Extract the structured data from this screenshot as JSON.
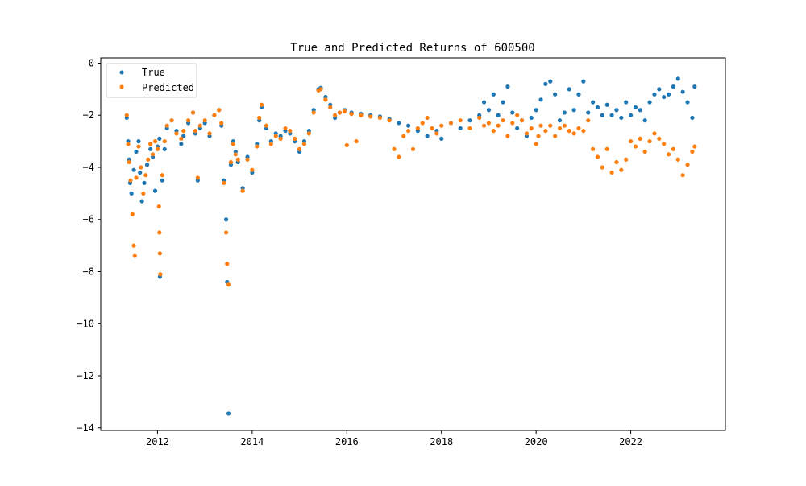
{
  "chart_data": {
    "type": "scatter",
    "title": "True and Predicted Returns of 600500",
    "xlabel": "",
    "ylabel": "",
    "xlim": [
      2010.8,
      2024.0
    ],
    "ylim": [
      -14.1,
      0.2
    ],
    "x_ticks": [
      2012,
      2014,
      2016,
      2018,
      2020,
      2022
    ],
    "x_tick_labels": [
      "2012",
      "2014",
      "2016",
      "2018",
      "2020",
      "2022"
    ],
    "y_ticks": [
      0,
      -2,
      -4,
      -6,
      -8,
      -10,
      -12,
      -14
    ],
    "y_tick_labels": [
      "0",
      "−2",
      "−4",
      "−6",
      "−8",
      "−10",
      "−12",
      "−14"
    ],
    "grid": false,
    "legend_position": "upper left",
    "series": [
      {
        "name": "True",
        "color": "#1f77b4",
        "points": [
          [
            2011.35,
            -2.1
          ],
          [
            2011.38,
            -3.0
          ],
          [
            2011.4,
            -3.7
          ],
          [
            2011.42,
            -4.6
          ],
          [
            2011.45,
            -5.0
          ],
          [
            2011.5,
            -4.1
          ],
          [
            2011.55,
            -3.4
          ],
          [
            2011.6,
            -3.0
          ],
          [
            2011.63,
            -4.2
          ],
          [
            2011.67,
            -5.3
          ],
          [
            2011.72,
            -4.6
          ],
          [
            2011.78,
            -3.9
          ],
          [
            2011.85,
            -3.3
          ],
          [
            2011.9,
            -3.6
          ],
          [
            2011.95,
            -4.9
          ],
          [
            2012.0,
            -3.2
          ],
          [
            2012.04,
            -2.9
          ],
          [
            2012.05,
            -8.2
          ],
          [
            2012.1,
            -4.5
          ],
          [
            2012.15,
            -3.3
          ],
          [
            2012.2,
            -2.5
          ],
          [
            2012.3,
            -2.2
          ],
          [
            2012.4,
            -2.6
          ],
          [
            2012.5,
            -3.1
          ],
          [
            2012.55,
            -2.8
          ],
          [
            2012.65,
            -2.3
          ],
          [
            2012.75,
            -1.9
          ],
          [
            2012.8,
            -2.7
          ],
          [
            2012.85,
            -4.5
          ],
          [
            2012.9,
            -2.5
          ],
          [
            2013.0,
            -2.3
          ],
          [
            2013.1,
            -2.8
          ],
          [
            2013.2,
            -2.0
          ],
          [
            2013.3,
            -1.8
          ],
          [
            2013.35,
            -2.4
          ],
          [
            2013.4,
            -4.5
          ],
          [
            2013.45,
            -6.0
          ],
          [
            2013.47,
            -8.4
          ],
          [
            2013.5,
            -13.45
          ],
          [
            2013.55,
            -3.9
          ],
          [
            2013.6,
            -3.0
          ],
          [
            2013.65,
            -3.4
          ],
          [
            2013.7,
            -3.8
          ],
          [
            2013.8,
            -4.8
          ],
          [
            2013.9,
            -3.6
          ],
          [
            2014.0,
            -4.2
          ],
          [
            2014.1,
            -3.1
          ],
          [
            2014.15,
            -2.2
          ],
          [
            2014.2,
            -1.7
          ],
          [
            2014.3,
            -2.5
          ],
          [
            2014.4,
            -3.0
          ],
          [
            2014.5,
            -2.7
          ],
          [
            2014.6,
            -2.8
          ],
          [
            2014.7,
            -2.6
          ],
          [
            2014.8,
            -2.7
          ],
          [
            2014.9,
            -3.0
          ],
          [
            2015.0,
            -3.4
          ],
          [
            2015.1,
            -3.0
          ],
          [
            2015.2,
            -2.6
          ],
          [
            2015.3,
            -1.8
          ],
          [
            2015.4,
            -1.0
          ],
          [
            2015.45,
            -0.95
          ],
          [
            2015.55,
            -1.3
          ],
          [
            2015.65,
            -1.6
          ],
          [
            2015.75,
            -2.1
          ],
          [
            2015.85,
            -1.9
          ],
          [
            2015.95,
            -1.8
          ],
          [
            2016.1,
            -1.9
          ],
          [
            2016.3,
            -1.95
          ],
          [
            2016.5,
            -2.0
          ],
          [
            2016.7,
            -2.05
          ],
          [
            2016.9,
            -2.15
          ],
          [
            2017.1,
            -2.3
          ],
          [
            2017.3,
            -2.4
          ],
          [
            2017.5,
            -2.6
          ],
          [
            2017.7,
            -2.8
          ],
          [
            2017.9,
            -2.6
          ],
          [
            2018.0,
            -2.9
          ],
          [
            2018.2,
            -2.3
          ],
          [
            2018.4,
            -2.5
          ],
          [
            2018.6,
            -2.2
          ],
          [
            2018.8,
            -2.0
          ],
          [
            2018.9,
            -1.5
          ],
          [
            2019.0,
            -1.8
          ],
          [
            2019.1,
            -1.2
          ],
          [
            2019.2,
            -2.0
          ],
          [
            2019.3,
            -1.5
          ],
          [
            2019.4,
            -0.9
          ],
          [
            2019.5,
            -1.9
          ],
          [
            2019.6,
            -2.5
          ],
          [
            2019.7,
            -2.2
          ],
          [
            2019.8,
            -2.8
          ],
          [
            2019.9,
            -2.1
          ],
          [
            2020.0,
            -1.8
          ],
          [
            2020.1,
            -1.4
          ],
          [
            2020.2,
            -0.8
          ],
          [
            2020.3,
            -0.7
          ],
          [
            2020.4,
            -1.2
          ],
          [
            2020.5,
            -2.2
          ],
          [
            2020.6,
            -1.9
          ],
          [
            2020.7,
            -1.0
          ],
          [
            2020.8,
            -1.8
          ],
          [
            2020.9,
            -1.2
          ],
          [
            2021.0,
            -0.7
          ],
          [
            2021.1,
            -1.9
          ],
          [
            2021.2,
            -1.5
          ],
          [
            2021.3,
            -1.7
          ],
          [
            2021.4,
            -2.0
          ],
          [
            2021.5,
            -1.6
          ],
          [
            2021.6,
            -2.0
          ],
          [
            2021.7,
            -1.8
          ],
          [
            2021.8,
            -2.1
          ],
          [
            2021.9,
            -1.5
          ],
          [
            2022.0,
            -2.0
          ],
          [
            2022.1,
            -1.7
          ],
          [
            2022.2,
            -1.8
          ],
          [
            2022.3,
            -2.2
          ],
          [
            2022.4,
            -1.5
          ],
          [
            2022.5,
            -1.2
          ],
          [
            2022.6,
            -1.0
          ],
          [
            2022.7,
            -1.3
          ],
          [
            2022.8,
            -1.2
          ],
          [
            2022.9,
            -0.9
          ],
          [
            2023.0,
            -0.6
          ],
          [
            2023.1,
            -1.1
          ],
          [
            2023.2,
            -1.5
          ],
          [
            2023.3,
            -2.1
          ],
          [
            2023.35,
            -0.9
          ]
        ]
      },
      {
        "name": "Predicted",
        "color": "#ff7f0e",
        "points": [
          [
            2011.35,
            -2.0
          ],
          [
            2011.38,
            -3.1
          ],
          [
            2011.4,
            -3.8
          ],
          [
            2011.43,
            -4.5
          ],
          [
            2011.47,
            -5.8
          ],
          [
            2011.5,
            -7.0
          ],
          [
            2011.52,
            -7.4
          ],
          [
            2011.55,
            -4.4
          ],
          [
            2011.6,
            -3.2
          ],
          [
            2011.65,
            -4.0
          ],
          [
            2011.7,
            -5.0
          ],
          [
            2011.75,
            -4.3
          ],
          [
            2011.8,
            -3.7
          ],
          [
            2011.85,
            -3.1
          ],
          [
            2011.9,
            -3.5
          ],
          [
            2011.95,
            -3.0
          ],
          [
            2012.0,
            -3.3
          ],
          [
            2012.03,
            -5.5
          ],
          [
            2012.04,
            -6.5
          ],
          [
            2012.05,
            -7.3
          ],
          [
            2012.06,
            -8.1
          ],
          [
            2012.1,
            -4.3
          ],
          [
            2012.15,
            -3.0
          ],
          [
            2012.2,
            -2.4
          ],
          [
            2012.3,
            -2.2
          ],
          [
            2012.4,
            -2.7
          ],
          [
            2012.5,
            -2.9
          ],
          [
            2012.55,
            -2.6
          ],
          [
            2012.65,
            -2.2
          ],
          [
            2012.75,
            -1.9
          ],
          [
            2012.8,
            -2.6
          ],
          [
            2012.85,
            -4.4
          ],
          [
            2012.9,
            -2.4
          ],
          [
            2013.0,
            -2.2
          ],
          [
            2013.1,
            -2.7
          ],
          [
            2013.2,
            -2.0
          ],
          [
            2013.3,
            -1.8
          ],
          [
            2013.35,
            -2.3
          ],
          [
            2013.4,
            -4.6
          ],
          [
            2013.45,
            -6.5
          ],
          [
            2013.47,
            -7.7
          ],
          [
            2013.5,
            -8.5
          ],
          [
            2013.55,
            -3.8
          ],
          [
            2013.6,
            -3.1
          ],
          [
            2013.65,
            -3.5
          ],
          [
            2013.7,
            -3.7
          ],
          [
            2013.8,
            -4.9
          ],
          [
            2013.9,
            -3.7
          ],
          [
            2014.0,
            -4.1
          ],
          [
            2014.1,
            -3.2
          ],
          [
            2014.15,
            -2.1
          ],
          [
            2014.2,
            -1.6
          ],
          [
            2014.3,
            -2.4
          ],
          [
            2014.4,
            -3.1
          ],
          [
            2014.5,
            -2.8
          ],
          [
            2014.6,
            -2.9
          ],
          [
            2014.7,
            -2.5
          ],
          [
            2014.8,
            -2.6
          ],
          [
            2014.9,
            -2.9
          ],
          [
            2015.0,
            -3.3
          ],
          [
            2015.1,
            -3.1
          ],
          [
            2015.2,
            -2.7
          ],
          [
            2015.3,
            -1.9
          ],
          [
            2015.4,
            -1.05
          ],
          [
            2015.45,
            -1.0
          ],
          [
            2015.55,
            -1.4
          ],
          [
            2015.65,
            -1.7
          ],
          [
            2015.75,
            -2.0
          ],
          [
            2015.85,
            -1.9
          ],
          [
            2015.95,
            -1.85
          ],
          [
            2016.0,
            -3.15
          ],
          [
            2016.2,
            -3.0
          ],
          [
            2016.1,
            -1.95
          ],
          [
            2016.3,
            -2.0
          ],
          [
            2016.5,
            -2.05
          ],
          [
            2016.7,
            -2.1
          ],
          [
            2016.9,
            -2.2
          ],
          [
            2017.0,
            -3.3
          ],
          [
            2017.1,
            -3.6
          ],
          [
            2017.2,
            -2.8
          ],
          [
            2017.3,
            -2.6
          ],
          [
            2017.4,
            -3.3
          ],
          [
            2017.5,
            -2.5
          ],
          [
            2017.6,
            -2.3
          ],
          [
            2017.7,
            -2.1
          ],
          [
            2017.8,
            -2.5
          ],
          [
            2017.9,
            -2.7
          ],
          [
            2018.0,
            -2.4
          ],
          [
            2018.2,
            -2.3
          ],
          [
            2018.4,
            -2.2
          ],
          [
            2018.6,
            -2.5
          ],
          [
            2018.8,
            -2.1
          ],
          [
            2018.9,
            -2.4
          ],
          [
            2019.0,
            -2.3
          ],
          [
            2019.1,
            -2.6
          ],
          [
            2019.2,
            -2.4
          ],
          [
            2019.3,
            -2.2
          ],
          [
            2019.4,
            -2.8
          ],
          [
            2019.5,
            -2.3
          ],
          [
            2019.6,
            -2.0
          ],
          [
            2019.7,
            -2.2
          ],
          [
            2019.8,
            -2.7
          ],
          [
            2019.9,
            -2.5
          ],
          [
            2020.0,
            -3.1
          ],
          [
            2020.05,
            -2.8
          ],
          [
            2020.1,
            -2.4
          ],
          [
            2020.2,
            -2.6
          ],
          [
            2020.3,
            -2.4
          ],
          [
            2020.4,
            -2.8
          ],
          [
            2020.5,
            -2.5
          ],
          [
            2020.6,
            -2.4
          ],
          [
            2020.7,
            -2.6
          ],
          [
            2020.8,
            -2.7
          ],
          [
            2020.9,
            -2.5
          ],
          [
            2021.0,
            -2.6
          ],
          [
            2021.1,
            -2.2
          ],
          [
            2021.2,
            -3.3
          ],
          [
            2021.3,
            -3.6
          ],
          [
            2021.4,
            -4.0
          ],
          [
            2021.5,
            -3.3
          ],
          [
            2021.6,
            -4.2
          ],
          [
            2021.7,
            -3.8
          ],
          [
            2021.8,
            -4.1
          ],
          [
            2021.9,
            -3.7
          ],
          [
            2022.0,
            -3.0
          ],
          [
            2022.1,
            -3.2
          ],
          [
            2022.2,
            -2.9
          ],
          [
            2022.3,
            -3.4
          ],
          [
            2022.4,
            -3.0
          ],
          [
            2022.5,
            -2.7
          ],
          [
            2022.6,
            -2.9
          ],
          [
            2022.7,
            -3.1
          ],
          [
            2022.8,
            -3.5
          ],
          [
            2022.9,
            -3.3
          ],
          [
            2023.0,
            -3.7
          ],
          [
            2023.1,
            -4.3
          ],
          [
            2023.2,
            -3.9
          ],
          [
            2023.3,
            -3.4
          ],
          [
            2023.35,
            -3.2
          ]
        ]
      }
    ]
  }
}
